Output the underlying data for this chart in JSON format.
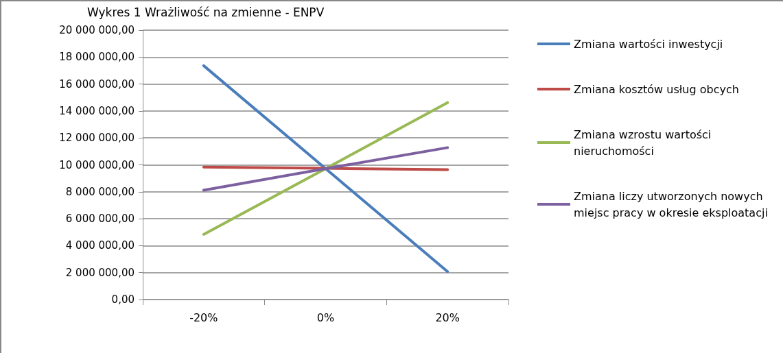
{
  "chart_data": {
    "type": "line",
    "title": "Wykres 1 Wrażliwość na zmienne - ENPV",
    "categories": [
      "-20%",
      "0%",
      "20%"
    ],
    "series": [
      {
        "name": "Zmiana wartości inwestycji",
        "color": "#4a7ebb",
        "values": [
          17360000,
          9720000,
          2070000
        ]
      },
      {
        "name": "Zmiana kosztów usług obcych",
        "color": "#be4b48",
        "values": [
          9830000,
          9740000,
          9650000
        ]
      },
      {
        "name": "Zmiana wzrostu wartości nieruchomości",
        "color": "#98b954",
        "values": [
          4840000,
          9720000,
          14620000
        ]
      },
      {
        "name": "Zmiana liczy utworzonych nowych miejsc pracy w okresie eksploatacji",
        "color": "#7d60a0",
        "values": [
          8120000,
          9720000,
          11280000
        ]
      }
    ],
    "ylim": [
      0,
      20000000
    ],
    "yticks": [
      {
        "value": 0,
        "label": "0,00"
      },
      {
        "value": 2000000,
        "label": "2 000 000,00"
      },
      {
        "value": 4000000,
        "label": "4 000 000,00"
      },
      {
        "value": 6000000,
        "label": "6 000 000,00"
      },
      {
        "value": 8000000,
        "label": "8 000 000,00"
      },
      {
        "value": 10000000,
        "label": "10 000 000,00"
      },
      {
        "value": 12000000,
        "label": "12 000 000,00"
      },
      {
        "value": 14000000,
        "label": "14 000 000,00"
      },
      {
        "value": 16000000,
        "label": "16 000 000,00"
      },
      {
        "value": 18000000,
        "label": "18 000 000,00"
      },
      {
        "value": 20000000,
        "label": "20 000 000,00"
      }
    ],
    "grid": "y",
    "legend": "right",
    "marker": "none",
    "line_style": "solid"
  }
}
